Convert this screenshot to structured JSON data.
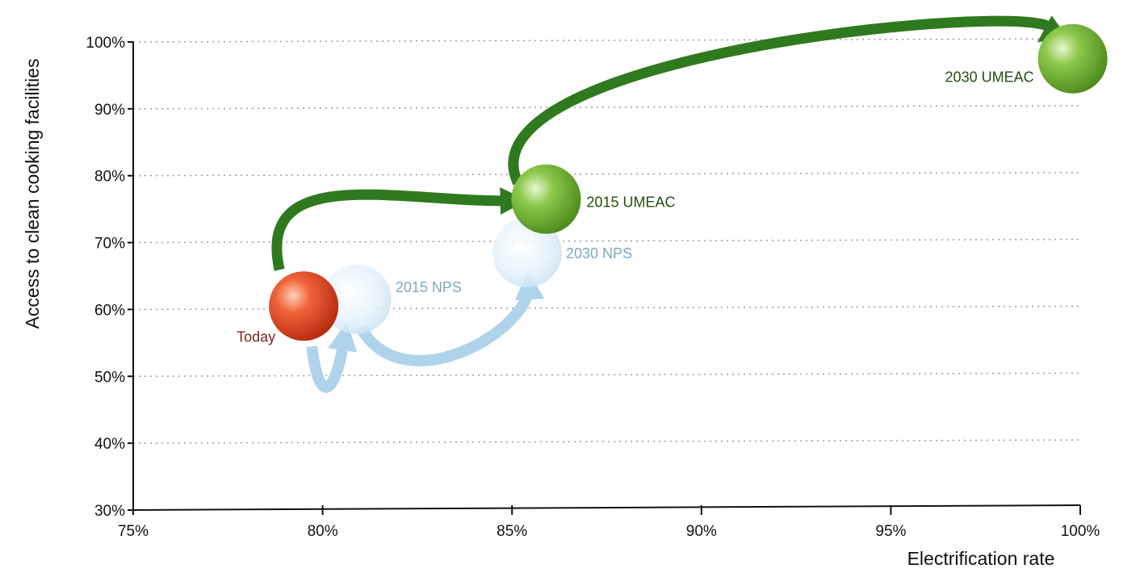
{
  "chart_data": {
    "type": "scatter",
    "xlabel": "Electrification rate",
    "ylabel": "Access to clean cooking facilities",
    "xlim": [
      75,
      100
    ],
    "ylim": [
      30,
      100
    ],
    "x_ticks": [
      "75%",
      "80%",
      "85%",
      "90%",
      "95%",
      "100%"
    ],
    "y_ticks": [
      "30%",
      "40%",
      "50%",
      "60%",
      "70%",
      "80%",
      "90%",
      "100%"
    ],
    "grid": "horizontal-dotted",
    "points": [
      {
        "label": "Today",
        "x": 79.5,
        "y": 60.5,
        "color": "#d9471f",
        "label_color": "#7a1f1f"
      },
      {
        "label": "2015 NPS",
        "x": 80.9,
        "y": 61.5,
        "color": "#cfe6f4",
        "label_color": "#7fa8c0"
      },
      {
        "label": "2030 NPS",
        "x": 85.4,
        "y": 68.5,
        "color": "#cfe6f4",
        "label_color": "#7fa8c0"
      },
      {
        "label": "2015 UMEAC",
        "x": 85.9,
        "y": 76.5,
        "color": "#6fae2e",
        "label_color": "#1f4f0f"
      },
      {
        "label": "2030 UMEAC",
        "x": 99.8,
        "y": 97.5,
        "color": "#6fae2e",
        "label_color": "#1f4f0f"
      }
    ],
    "paths": [
      {
        "from": "Today",
        "to": "2015 UMEAC",
        "color": "#2f7a1e"
      },
      {
        "from": "2015 UMEAC",
        "to": "2030 UMEAC",
        "color": "#2f7a1e"
      },
      {
        "from": "Today",
        "to": "2015 NPS",
        "color": "#aed3ea"
      },
      {
        "from": "2015 NPS",
        "to": "2030 NPS",
        "color": "#aed3ea"
      }
    ]
  }
}
